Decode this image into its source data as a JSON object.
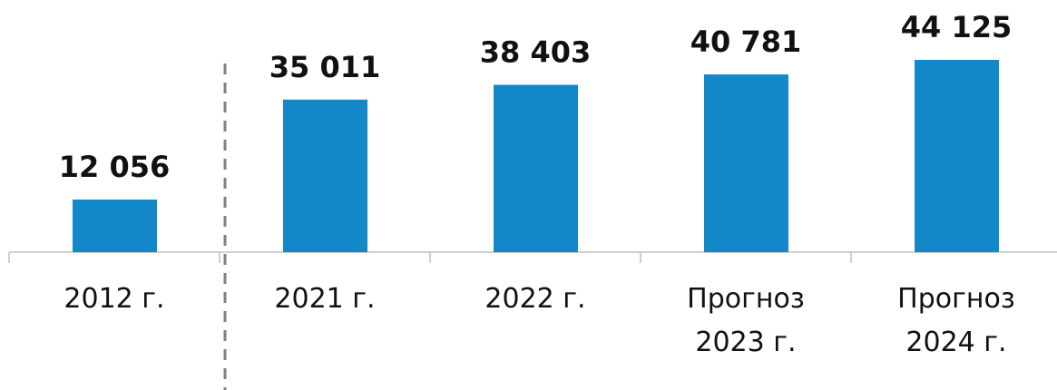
{
  "chart_data": {
    "type": "bar",
    "categories": [
      "2012 г.",
      "2021 г.",
      "2022 г.",
      "Прогноз 2023 г.",
      "Прогноз 2024 г."
    ],
    "values": [
      12056,
      35011,
      38403,
      40781,
      44125
    ],
    "value_labels": [
      "12 056",
      "35 011",
      "38 403",
      "40 781",
      "44 125"
    ],
    "color": "#1288c9"
  }
}
